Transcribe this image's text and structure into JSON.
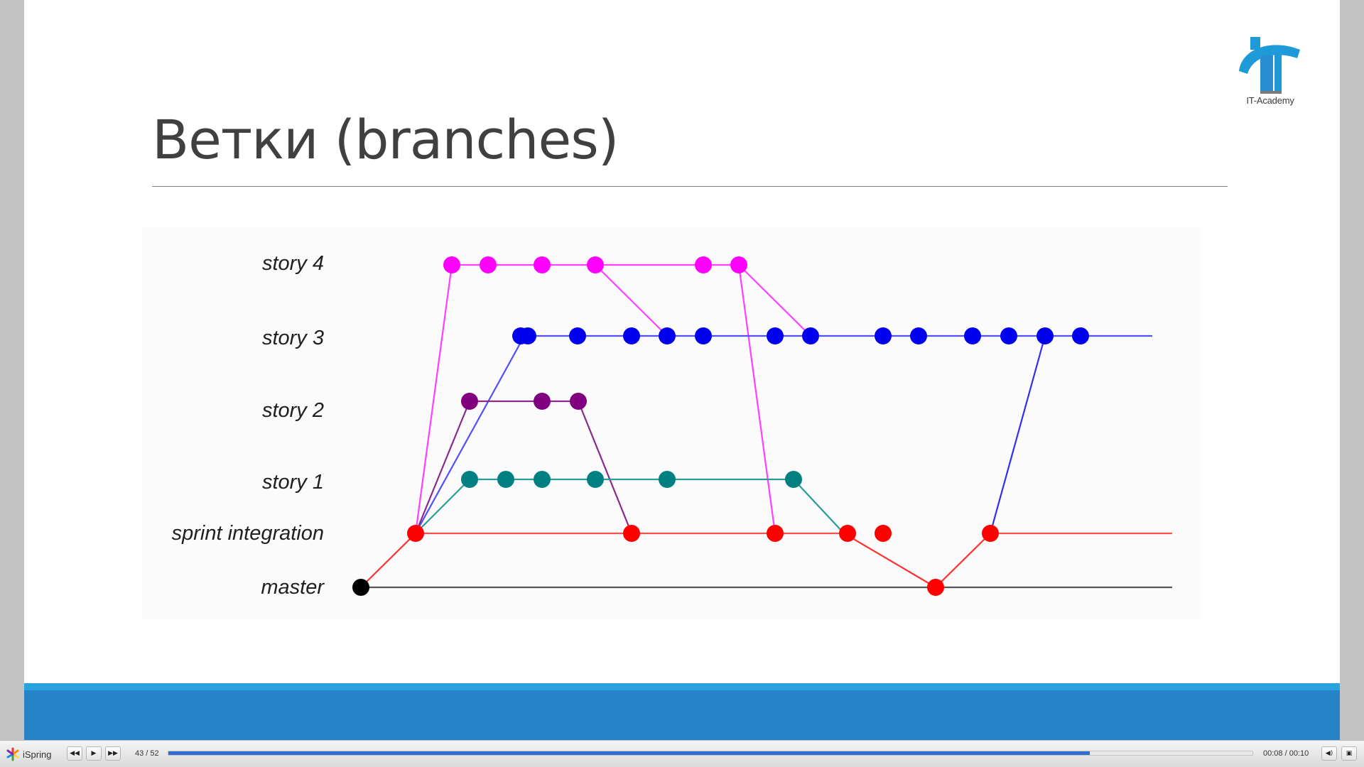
{
  "slide": {
    "title": "Ветки (branches)",
    "logo_text": "IT-Academy",
    "brand_colors": {
      "logo_blue": "#1e9ad8",
      "band_light": "#29a3df",
      "band_dark": "#2783c8"
    }
  },
  "branch_diagram": {
    "lanes": [
      {
        "id": "story4",
        "label": "story 4",
        "color": "#ff00ff"
      },
      {
        "id": "story3",
        "label": "story 3",
        "color": "#0000ee"
      },
      {
        "id": "story2",
        "label": "story 2",
        "color": "#800080"
      },
      {
        "id": "story1",
        "label": "story 1",
        "color": "#008080"
      },
      {
        "id": "sprint",
        "label": "sprint integration",
        "color": "#ff0000"
      },
      {
        "id": "master",
        "label": "master",
        "color": "#555555"
      }
    ]
  },
  "player": {
    "brand": "iSpring",
    "slide_counter": "43 / 52",
    "progress_fraction": 0.85,
    "time": "00:08 / 00:10",
    "buttons": {
      "prev": "previous-slide",
      "play": "play",
      "next": "next-slide",
      "volume": "volume",
      "fullscreen": "fullscreen"
    }
  }
}
